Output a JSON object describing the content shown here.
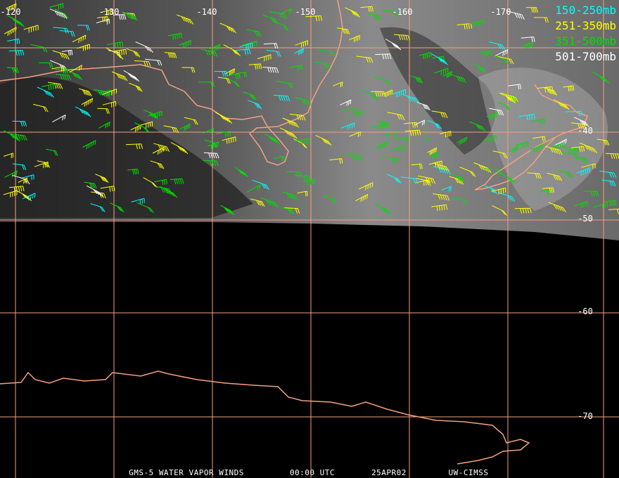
{
  "longitude_labels": [
    "-120",
    "-130",
    "-140",
    "-150",
    "-160",
    "-170"
  ],
  "latitude_labels": [
    "-40",
    "-50",
    "-60",
    "-70"
  ],
  "legend": [
    {
      "label": "150-250mb",
      "color": "#00ffff"
    },
    {
      "label": "251-350mb",
      "color": "#ffff00"
    },
    {
      "label": "351-500mb",
      "color": "#00e000"
    },
    {
      "label": "501-700mb",
      "color": "#ffffff"
    }
  ],
  "footer": [
    "GMS-5 WATER VAPOR WINDS",
    "00:00 UTC",
    "25APR02",
    "UW-CIMSS"
  ]
}
